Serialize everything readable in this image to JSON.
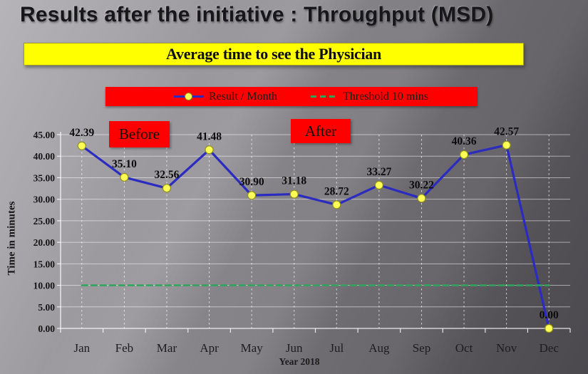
{
  "slide": {
    "title": "Results after the initiative : Throughput  (MSD)",
    "banner": "Average time to see the Physician",
    "annotations": {
      "before": "Before",
      "after": "After"
    }
  },
  "chart_data": {
    "type": "line",
    "title": "Average time to see the Physician",
    "categories": [
      "Jan",
      "Feb",
      "Mar",
      "Apr",
      "May",
      "Jun",
      "Jul",
      "Aug",
      "Sep",
      "Oct",
      "Nov",
      "Dec"
    ],
    "series": [
      {
        "name": "Result / Month",
        "values": [
          42.39,
          35.1,
          32.56,
          41.48,
          30.9,
          31.18,
          28.72,
          33.27,
          30.22,
          40.36,
          42.57,
          0.0
        ],
        "color": "#2b2bc0",
        "marker_fill": "#ffff55",
        "marker_stroke": "#8f8f1e",
        "data_labels": true
      },
      {
        "name": "Threshold 10 mins",
        "values": [
          10,
          10,
          10,
          10,
          10,
          10,
          10,
          10,
          10,
          10,
          10,
          10
        ],
        "color": "#2fa45c",
        "dashed": true,
        "data_labels": false
      }
    ],
    "xlabel": "Year 2018",
    "ylabel": "Time in minutes",
    "ylim": [
      0,
      45
    ],
    "ytick_step": 5,
    "grid": true,
    "legend_position": "top"
  },
  "colors": {
    "banner_bg": "#ffff00",
    "legend_bg": "#fe0000",
    "annotation_bg": "#fe0000",
    "background_light": "#b6b4b9",
    "background_dark": "#4b494e"
  }
}
